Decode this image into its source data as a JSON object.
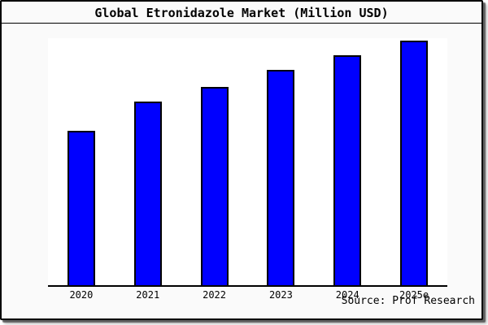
{
  "figure": {
    "title": "Global Etronidazole Market (Million USD)",
    "source_note": "Source: Prof Research"
  },
  "chart_data": {
    "type": "bar",
    "title": "Global Etronidazole Market (Million USD)",
    "categories": [
      "2020",
      "2021",
      "2022",
      "2023",
      "2024",
      "2025e"
    ],
    "values": [
      63,
      75,
      81,
      88,
      94,
      100
    ],
    "values_note": "y-axis has no tick labels; values are estimated bar heights as percent of the 2025e bar",
    "xlabel": "",
    "ylabel": "",
    "grid": false,
    "legend": false,
    "source_note": "Source: Prof Research",
    "bar_color": "#0000ff",
    "bar_border_color": "#000000",
    "plot_background": "#ffffff",
    "figure_background": "#fafafa",
    "axis_color": "#000000"
  }
}
